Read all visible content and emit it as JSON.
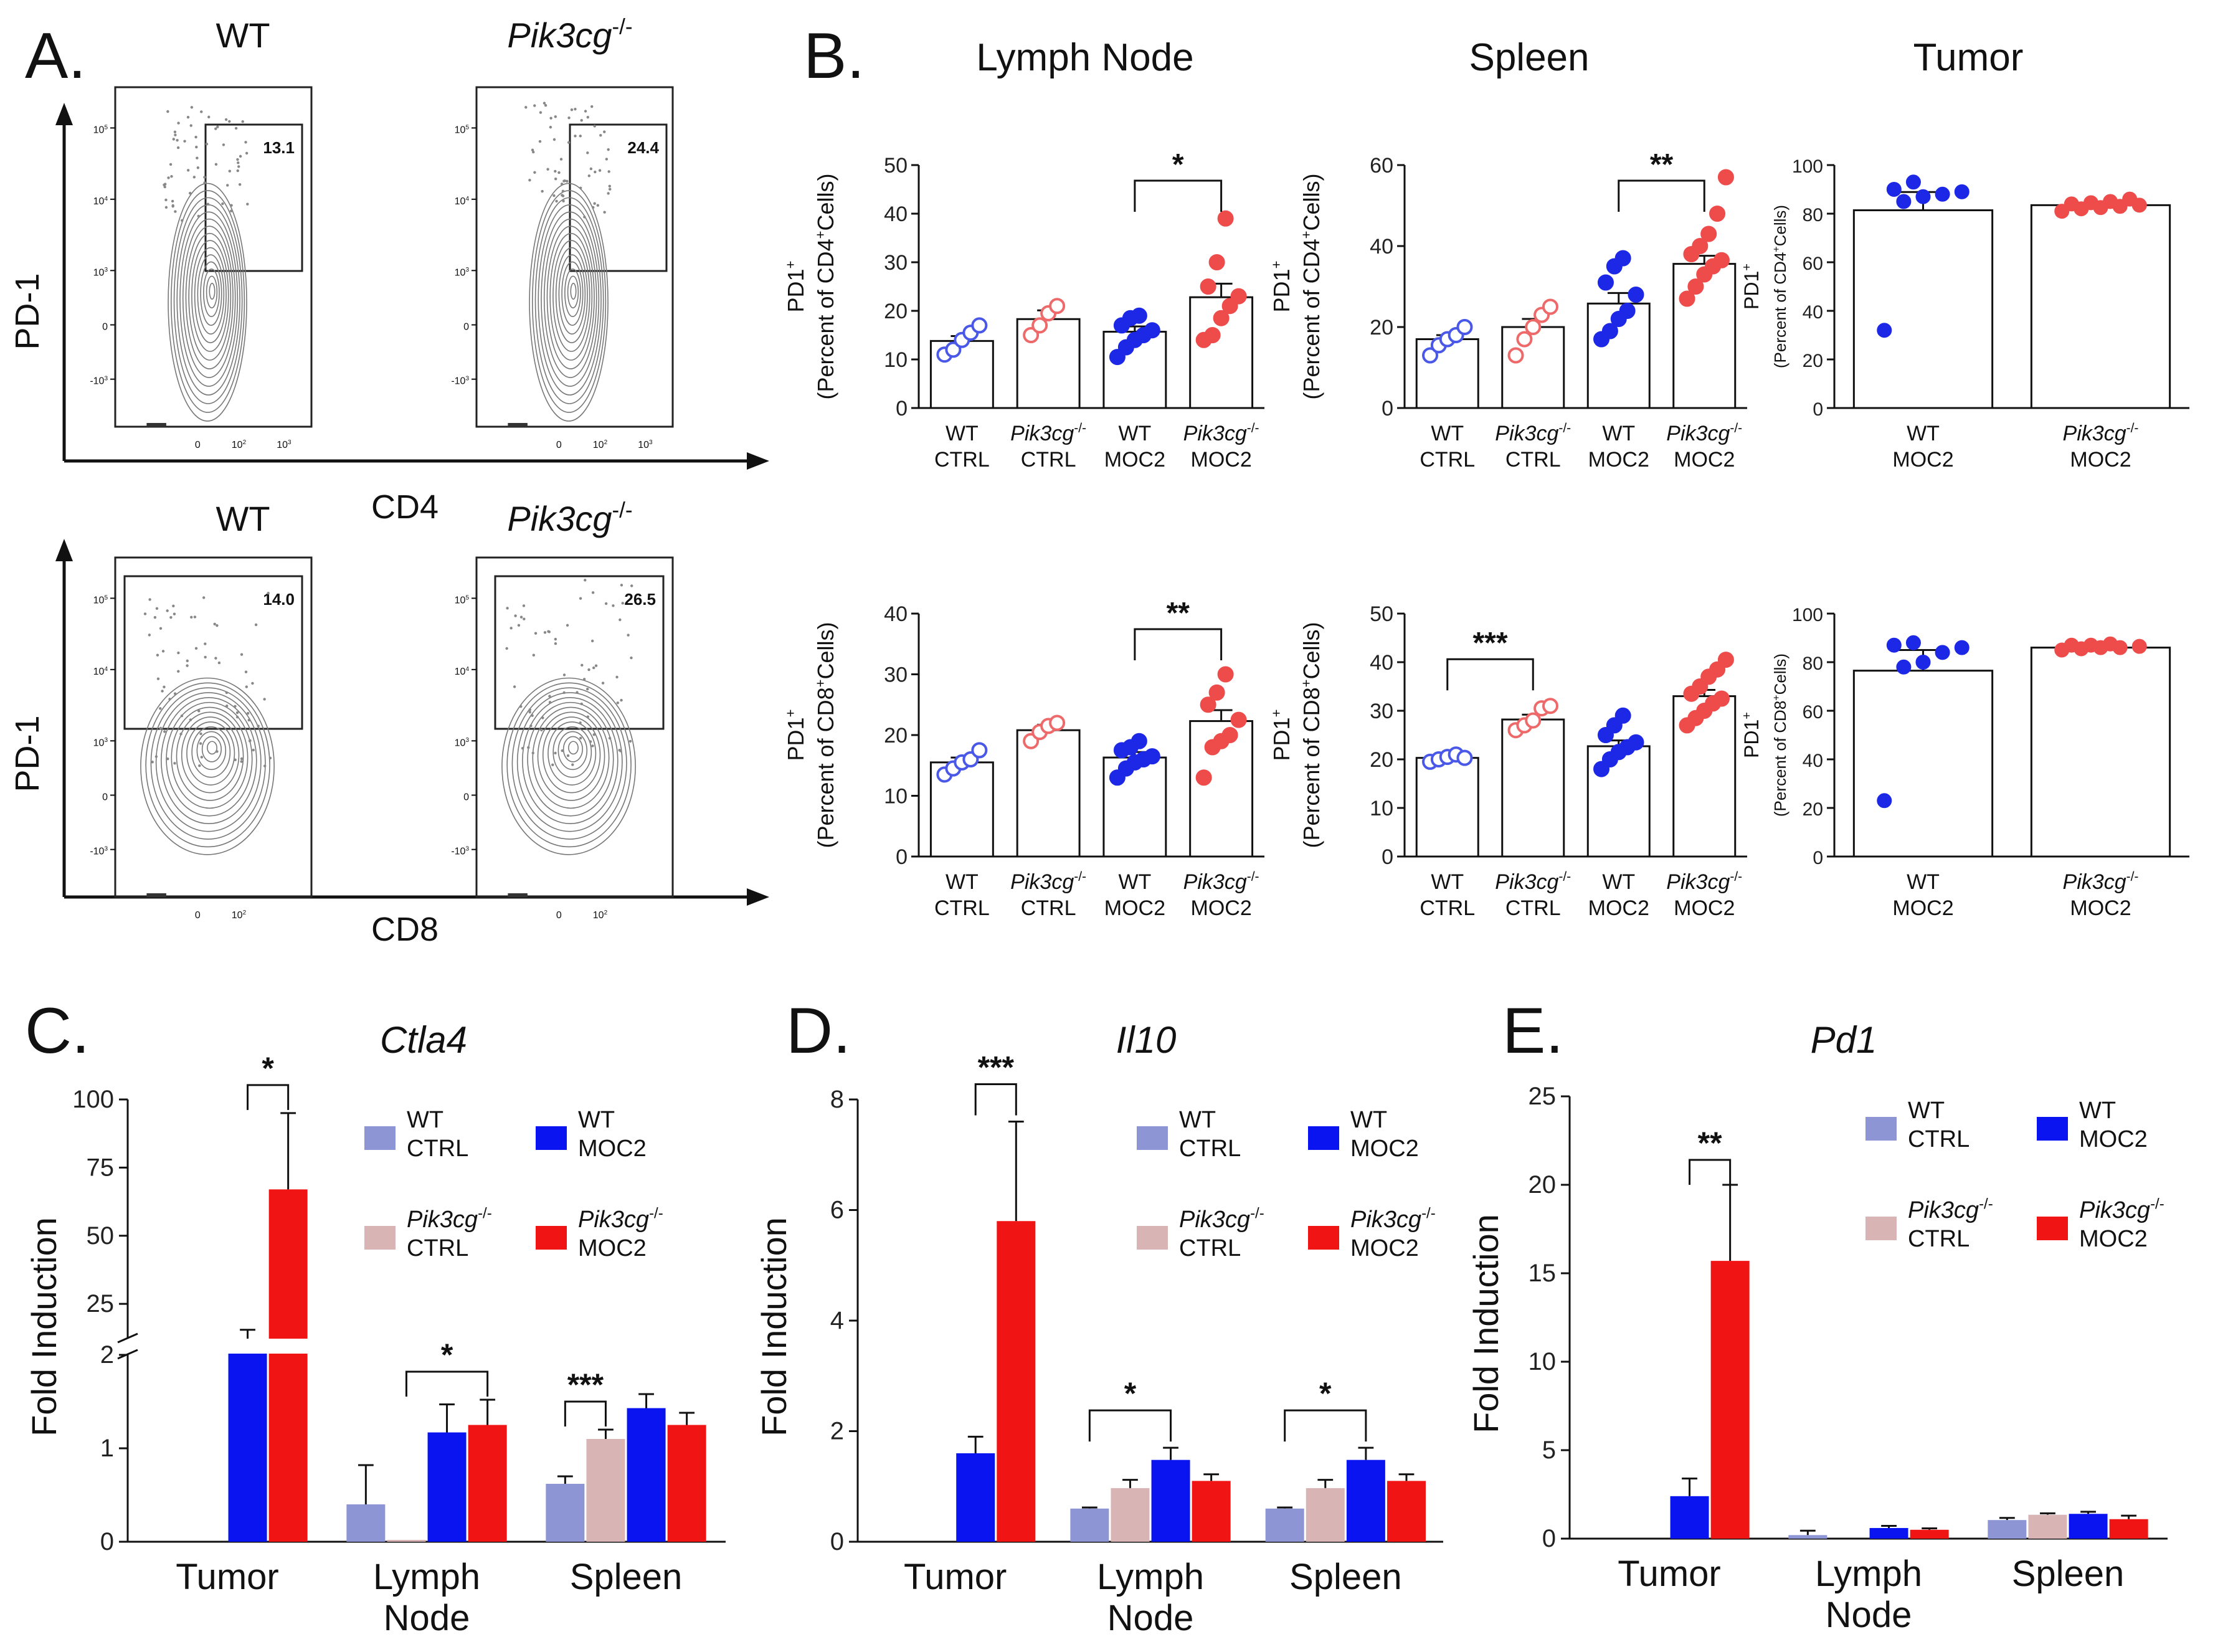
{
  "figure": {
    "panel_labels": {
      "a": "A.",
      "b": "B.",
      "c": "C.",
      "d": "D.",
      "e": "E."
    },
    "flow": {
      "col_wt": "WT",
      "col_ko_base": "Pik3cg",
      "col_ko_sup": "-/-",
      "y_label": "PD-1",
      "x_label_top": "CD4",
      "x_label_bottom": "CD8",
      "gates": {
        "cd4_wt": "13.1",
        "cd4_ko": "24.4",
        "cd8_wt": "14.0",
        "cd8_ko": "26.5"
      },
      "y_ticks": [
        {
          "base": "10",
          "exp": "5"
        },
        {
          "base": "10",
          "exp": "4"
        },
        {
          "base": "10",
          "exp": "3"
        },
        {
          "base": "0",
          "exp": ""
        },
        {
          "base": "-10",
          "exp": "3"
        }
      ],
      "x_ticks_cd4": [
        {
          "base": "0",
          "exp": ""
        },
        {
          "base": "10",
          "exp": "2"
        },
        {
          "base": "10",
          "exp": "3"
        }
      ],
      "x_ticks_cd8": [
        {
          "base": "0",
          "exp": ""
        },
        {
          "base": "10",
          "exp": "2"
        }
      ]
    },
    "b_titles": {
      "ln": "Lymph Node",
      "sp": "Spleen",
      "tu": "Tumor"
    },
    "b_axis": {
      "pd1": "PD1",
      "pd1_sup": "+",
      "cd4_prefix": "(Percent of CD4",
      "cd8_prefix": "(Percent of CD8",
      "cells_suffix": "Cells)",
      "plus": "+"
    },
    "b_groups": {
      "wt": "WT",
      "ko_base": "Pik3cg",
      "ko_sup": "-/-",
      "ctrl": "CTRL",
      "moc2": "MOC2"
    },
    "legend": {
      "wt": "WT",
      "ctrl": "CTRL",
      "moc2": "MOC2",
      "ko_base": "Pik3cg",
      "ko_sup": "-/-"
    },
    "bottom": {
      "c_title": "Ctla4",
      "d_title": "Il10",
      "e_title": "Pd1",
      "y_label": "Fold Induction",
      "tissues": {
        "tumor": "Tumor",
        "lymph": "Lymph",
        "node": "Node",
        "spleen": "Spleen"
      }
    },
    "colors": {
      "wt_ctrl": "#8e95d4",
      "ko_ctrl": "#d8b4b4",
      "wt_moc2": "#0a14f0",
      "ko_moc2": "#f01414",
      "dot_blue": "#1c28e6",
      "dot_red": "#ee4b4b",
      "dot_blue_open": "#4a58e8",
      "dot_red_open": "#ee6a6a"
    }
  },
  "chart_data": [
    {
      "id": "B_LN_CD4",
      "type": "scatter",
      "title": "Lymph Node",
      "ylabel": "PD1+ (Percent of CD4+ Cells)",
      "ylim": [
        0,
        50
      ],
      "categories": [
        "WT CTRL",
        "Pik3cg-/- CTRL",
        "WT MOC2",
        "Pik3cg-/- MOC2"
      ],
      "means": [
        13.8,
        18.3,
        15.7,
        22.8
      ],
      "sem": [
        1,
        1.8,
        1.1,
        2.8
      ],
      "points": [
        [
          11,
          12,
          14,
          15.5,
          17
        ],
        [
          15,
          17,
          19.5,
          21
        ],
        [
          10.5,
          12.5,
          14,
          15,
          16,
          17,
          18.5,
          19
        ],
        [
          14,
          15,
          18.5,
          21,
          23,
          25,
          30,
          39
        ]
      ],
      "significance": [
        {
          "from": 2,
          "to": 3,
          "label": "*"
        }
      ]
    },
    {
      "id": "B_SP_CD4",
      "type": "scatter",
      "title": "Spleen",
      "ylabel": "PD1+ (Percent of CD4+ Cells)",
      "ylim": [
        0,
        60
      ],
      "categories": [
        "WT CTRL",
        "Pik3cg-/- CTRL",
        "WT MOC2",
        "Pik3cg-/- MOC2"
      ],
      "means": [
        17,
        20,
        25.8,
        35.6
      ],
      "sem": [
        1,
        2,
        2.6,
        2
      ],
      "points": [
        [
          13,
          15.5,
          17,
          18,
          20
        ],
        [
          13,
          17,
          20,
          23,
          25
        ],
        [
          17,
          19,
          22,
          24,
          28,
          31,
          35,
          37
        ],
        [
          27,
          30,
          33,
          35,
          36.5,
          38,
          40,
          43,
          48,
          57
        ]
      ],
      "significance": [
        {
          "from": 2,
          "to": 3,
          "label": "**"
        }
      ]
    },
    {
      "id": "B_TU_CD4",
      "type": "scatter",
      "title": "Tumor",
      "ylabel": "PD1+ (Percent of CD4+ Cells)",
      "ylim": [
        0,
        100
      ],
      "categories": [
        "WT MOC2",
        "Pik3cg-/- MOC2"
      ],
      "means": [
        81.4,
        83.5
      ],
      "sem": [
        7.5,
        0.8
      ],
      "points": [
        [
          32,
          85,
          87,
          88,
          89,
          90,
          93
        ],
        [
          81,
          82,
          82.5,
          83,
          83.5,
          84,
          84.5,
          85,
          86
        ]
      ],
      "significance": []
    },
    {
      "id": "B_LN_CD8",
      "type": "scatter",
      "title": "",
      "ylabel": "PD1+ (Percent of CD8+ Cells)",
      "ylim": [
        0,
        40
      ],
      "categories": [
        "WT CTRL",
        "Pik3cg-/- CTRL",
        "WT MOC2",
        "Pik3cg-/- MOC2"
      ],
      "means": [
        15.5,
        20.8,
        16.3,
        22.3
      ],
      "sem": [
        0.8,
        0.9,
        0.9,
        1.8
      ],
      "points": [
        [
          13.5,
          14.5,
          15.5,
          16,
          17.5
        ],
        [
          19,
          20.5,
          21.5,
          22
        ],
        [
          13,
          14.5,
          15.5,
          16,
          16.5,
          17.5,
          18,
          19
        ],
        [
          13,
          18,
          19,
          20,
          22.5,
          25,
          27,
          30
        ]
      ],
      "significance": [
        {
          "from": 2,
          "to": 3,
          "label": "**"
        }
      ]
    },
    {
      "id": "B_SP_CD8",
      "type": "scatter",
      "title": "",
      "ylabel": "PD1+ (Percent of CD8+ Cells)",
      "ylim": [
        0,
        50
      ],
      "categories": [
        "WT CTRL",
        "Pik3cg-/- CTRL",
        "WT MOC2",
        "Pik3cg-/- MOC2"
      ],
      "means": [
        20.3,
        28.2,
        22.7,
        33
      ],
      "sem": [
        0.5,
        1,
        1.2,
        1.3
      ],
      "points": [
        [
          19.5,
          20,
          20.5,
          21,
          20.3
        ],
        [
          26,
          27,
          28,
          30.5,
          31
        ],
        [
          18,
          20,
          21.5,
          22.5,
          23.5,
          25,
          27,
          29
        ],
        [
          27,
          28.5,
          30,
          31.5,
          32.5,
          33.5,
          35,
          37,
          38.5,
          40.5
        ]
      ],
      "significance": [
        {
          "from": 0,
          "to": 1,
          "label": "***"
        }
      ]
    },
    {
      "id": "B_TU_CD8",
      "type": "scatter",
      "title": "",
      "ylabel": "PD1+ (Percent of CD8+ Cells)",
      "ylim": [
        0,
        100
      ],
      "categories": [
        "WT MOC2",
        "Pik3cg-/- MOC2"
      ],
      "means": [
        76.5,
        86
      ],
      "sem": [
        8.5,
        0.4
      ],
      "points": [
        [
          23,
          78,
          80,
          84,
          86,
          87,
          88
        ],
        [
          85,
          85.5,
          86,
          86,
          86.5,
          87,
          87,
          87.5
        ]
      ],
      "significance": []
    },
    {
      "id": "C",
      "type": "bar",
      "title": "Ctla4",
      "ylabel": "Fold Induction",
      "y_ticks": [
        0,
        1,
        2,
        25,
        50,
        75,
        100
      ],
      "axis_break": true,
      "categories": [
        "Tumor",
        "Lymph Node",
        "Spleen"
      ],
      "series": [
        {
          "name": "WT CTRL",
          "values": [
            null,
            0.4,
            0.62
          ],
          "err": [
            null,
            0.42,
            0.08
          ]
        },
        {
          "name": "Pik3cg-/- CTRL",
          "values": [
            null,
            0.02,
            1.1
          ],
          "err": [
            null,
            0,
            0.1
          ]
        },
        {
          "name": "WT MOC2",
          "values": [
            12,
            1.17,
            1.43
          ],
          "err": [
            3.5,
            0.3,
            0.15
          ]
        },
        {
          "name": "Pik3cg-/- MOC2",
          "values": [
            67,
            1.25,
            1.25
          ],
          "err": [
            28,
            0.27,
            0.13
          ]
        }
      ],
      "significance": [
        {
          "category": "Tumor",
          "label": "*"
        },
        {
          "category": "Lymph Node",
          "label": "*"
        },
        {
          "category": "Spleen",
          "label": "***"
        }
      ]
    },
    {
      "id": "D",
      "type": "bar",
      "title": "Il10",
      "ylabel": "Fold Induction",
      "ylim": [
        0,
        8
      ],
      "categories": [
        "Tumor",
        "Lymph Node",
        "Spleen"
      ],
      "series": [
        {
          "name": "WT CTRL",
          "values": [
            null,
            0.6,
            0.6
          ],
          "err": [
            null,
            0.02,
            0.02
          ]
        },
        {
          "name": "Pik3cg-/- CTRL",
          "values": [
            null,
            0.97,
            0.97
          ],
          "err": [
            null,
            0.15,
            0.15
          ]
        },
        {
          "name": "WT MOC2",
          "values": [
            1.6,
            1.48,
            1.48
          ],
          "err": [
            0.3,
            0.22,
            0.22
          ]
        },
        {
          "name": "Pik3cg-/- MOC2",
          "values": [
            5.8,
            1.1,
            1.1
          ],
          "err": [
            1.8,
            0.12,
            0.12
          ]
        }
      ],
      "significance": [
        {
          "category": "Tumor",
          "label": "***"
        },
        {
          "category": "Lymph Node",
          "label": "*"
        },
        {
          "category": "Spleen",
          "label": "*"
        }
      ]
    },
    {
      "id": "E",
      "type": "bar",
      "title": "Pd1",
      "ylabel": "Fold Induction",
      "ylim": [
        0,
        25
      ],
      "categories": [
        "Tumor",
        "Lymph Node",
        "Spleen"
      ],
      "series": [
        {
          "name": "WT CTRL",
          "values": [
            null,
            0.2,
            1.05
          ],
          "err": [
            null,
            0.25,
            0.12
          ]
        },
        {
          "name": "Pik3cg-/- CTRL",
          "values": [
            null,
            null,
            1.35
          ],
          "err": [
            null,
            null,
            0.08
          ]
        },
        {
          "name": "WT MOC2",
          "values": [
            2.4,
            0.6,
            1.4
          ],
          "err": [
            1,
            0.12,
            0.12
          ]
        },
        {
          "name": "Pik3cg-/- MOC2",
          "values": [
            15.7,
            0.5,
            1.1
          ],
          "err": [
            4.3,
            0.08,
            0.2
          ]
        }
      ],
      "significance": [
        {
          "category": "Tumor",
          "label": "**"
        }
      ]
    }
  ]
}
